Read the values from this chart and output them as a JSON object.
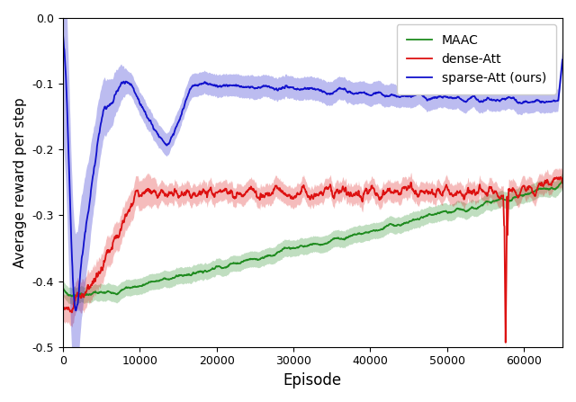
{
  "xlabel": "Episode",
  "ylabel": "Average reward per step",
  "xlim": [
    0,
    65000
  ],
  "ylim": [
    -0.5,
    0.0
  ],
  "yticks": [
    0.0,
    -0.1,
    -0.2,
    -0.3,
    -0.4,
    -0.5
  ],
  "xticks": [
    0,
    10000,
    20000,
    30000,
    40000,
    50000,
    60000
  ],
  "legend_labels": [
    "MAAC",
    "dense-Att",
    "sparse-Att (ours)"
  ],
  "colors": {
    "maac": "#1f8b1f",
    "dense": "#dd1111",
    "sparse": "#1111cc"
  },
  "seed": 7,
  "n_points": 1300,
  "figsize": [
    6.4,
    4.47
  ],
  "dpi": 100
}
